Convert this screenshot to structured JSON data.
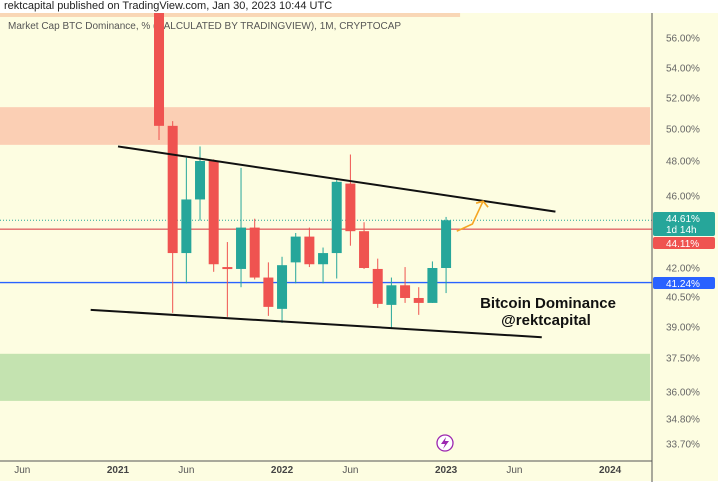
{
  "header": {
    "published": "rektcapital published on TradingView.com, Jan 30, 2023 10:44 UTC"
  },
  "chart_data": {
    "type": "candlestick",
    "title": "Market Cap BTC Dominance, % (CALCULATED BY TRADINGVIEW), 1M, CRYPTOCAP",
    "y_scale": "log",
    "y_ticks": [
      56,
      54,
      52,
      50,
      48,
      46,
      42,
      40.5,
      39,
      37.5,
      36,
      34.8,
      33.7
    ],
    "y_tick_labels": [
      "56.00%",
      "54.00%",
      "52.00%",
      "50.00%",
      "48.00%",
      "46.00%",
      "42.00%",
      "40.50%",
      "39.00%",
      "37.50%",
      "36.00%",
      "34.80%",
      "33.70%"
    ],
    "x_ticks": [
      {
        "date": "2020-06",
        "label": "Jun",
        "bold": false
      },
      {
        "date": "2021-01",
        "label": "2021",
        "bold": true
      },
      {
        "date": "2021-06",
        "label": "Jun",
        "bold": false
      },
      {
        "date": "2022-01",
        "label": "2022",
        "bold": true
      },
      {
        "date": "2022-06",
        "label": "Jun",
        "bold": false
      },
      {
        "date": "2023-01",
        "label": "2023",
        "bold": true
      },
      {
        "date": "2023-06",
        "label": "Jun",
        "bold": false
      },
      {
        "date": "2024-01",
        "label": "2024",
        "bold": true
      }
    ],
    "candles": [
      {
        "date": "2021-04",
        "o": 61.0,
        "h": 62.0,
        "l": 49.3,
        "c": 50.2
      },
      {
        "date": "2021-05",
        "o": 50.2,
        "h": 50.5,
        "l": 39.7,
        "c": 42.8
      },
      {
        "date": "2021-06",
        "o": 42.8,
        "h": 48.2,
        "l": 41.2,
        "c": 45.8
      },
      {
        "date": "2021-07",
        "o": 45.8,
        "h": 48.9,
        "l": 44.6,
        "c": 48.0
      },
      {
        "date": "2021-08",
        "o": 48.0,
        "h": 48.1,
        "l": 41.8,
        "c": 42.2
      },
      {
        "date": "2021-09",
        "o": 42.05,
        "h": 43.4,
        "l": 39.5,
        "c": 41.95
      },
      {
        "date": "2021-10",
        "o": 41.95,
        "h": 47.6,
        "l": 41.0,
        "c": 44.2
      },
      {
        "date": "2021-11",
        "o": 44.2,
        "h": 44.7,
        "l": 41.4,
        "c": 41.5
      },
      {
        "date": "2021-12",
        "o": 41.5,
        "h": 42.3,
        "l": 39.55,
        "c": 40.0
      },
      {
        "date": "2022-01",
        "o": 39.9,
        "h": 42.6,
        "l": 39.2,
        "c": 42.15
      },
      {
        "date": "2022-02",
        "o": 42.3,
        "h": 43.9,
        "l": 41.2,
        "c": 43.7
      },
      {
        "date": "2022-03",
        "o": 43.7,
        "h": 44.2,
        "l": 42.05,
        "c": 42.2
      },
      {
        "date": "2022-04",
        "o": 42.2,
        "h": 43.1,
        "l": 41.2,
        "c": 42.8
      },
      {
        "date": "2022-05",
        "o": 42.8,
        "h": 46.9,
        "l": 41.45,
        "c": 46.8
      },
      {
        "date": "2022-06",
        "o": 46.7,
        "h": 48.4,
        "l": 43.2,
        "c": 44.0
      },
      {
        "date": "2022-07",
        "o": 44.0,
        "h": 44.5,
        "l": 41.95,
        "c": 42.0
      },
      {
        "date": "2022-08",
        "o": 41.95,
        "h": 42.5,
        "l": 39.95,
        "c": 40.15
      },
      {
        "date": "2022-09",
        "o": 40.1,
        "h": 41.5,
        "l": 38.9,
        "c": 41.1
      },
      {
        "date": "2022-10",
        "o": 41.1,
        "h": 42.05,
        "l": 40.2,
        "c": 40.45
      },
      {
        "date": "2022-11",
        "o": 40.45,
        "h": 41.0,
        "l": 39.6,
        "c": 40.2
      },
      {
        "date": "2022-12",
        "o": 40.2,
        "h": 42.35,
        "l": 40.2,
        "c": 42.0
      },
      {
        "date": "2023-01",
        "o": 42.0,
        "h": 44.8,
        "l": 40.7,
        "c": 44.61
      }
    ],
    "zones": [
      {
        "name": "top-resistance-strip",
        "from": 57.0,
        "to": 60.0,
        "end": "2023-01",
        "color": "#f9d7b6"
      },
      {
        "name": "resistance-zone",
        "from": 49.0,
        "to": 51.4,
        "color": "#fbcfb4"
      },
      {
        "name": "support-zone",
        "from": 35.6,
        "to": 37.7,
        "color": "#c4e3b0"
      }
    ],
    "trendlines": [
      {
        "name": "upper-trendline",
        "from": {
          "date": "2021-01",
          "value": 48.9
        },
        "to": {
          "date": "2023-09",
          "value": 45.1
        },
        "color": "#111111"
      },
      {
        "name": "lower-trendline",
        "from": {
          "date": "2020-11",
          "value": 39.85
        },
        "to": {
          "date": "2023-08",
          "value": 38.5
        },
        "color": "#111111"
      }
    ],
    "projection_arrow": {
      "from": {
        "date": "2023-02",
        "value": 44.0
      },
      "mid": {
        "date": "2023-03",
        "value": 44.4
      },
      "to": {
        "date": "2023-04",
        "value": 45.7
      },
      "color": "#f5a623"
    },
    "horizontal_lines": [
      {
        "name": "blue-level-line",
        "value": 41.24,
        "color": "#2962ff",
        "style": "solid"
      },
      {
        "name": "prev-close-line",
        "value": 44.11,
        "color": "#e06666",
        "style": "solid"
      },
      {
        "name": "last-price-line",
        "value": 44.61,
        "color": "#26a69a",
        "style": "dotted"
      }
    ],
    "price_badges": [
      {
        "name": "last-price-badge",
        "label": "44.61%",
        "sub": "1d 14h",
        "color": "#26a69a"
      },
      {
        "name": "prev-close-badge",
        "label": "44.11%",
        "color": "#ef5350"
      },
      {
        "name": "level-badge",
        "label": "41.24%",
        "color": "#2962ff"
      }
    ],
    "annotations": [
      "Bitcoin Dominance",
      "@rektcapital"
    ],
    "colors": {
      "up": "#26a69a",
      "down": "#ef5350",
      "background": "#fdfde1"
    },
    "grid": false
  }
}
